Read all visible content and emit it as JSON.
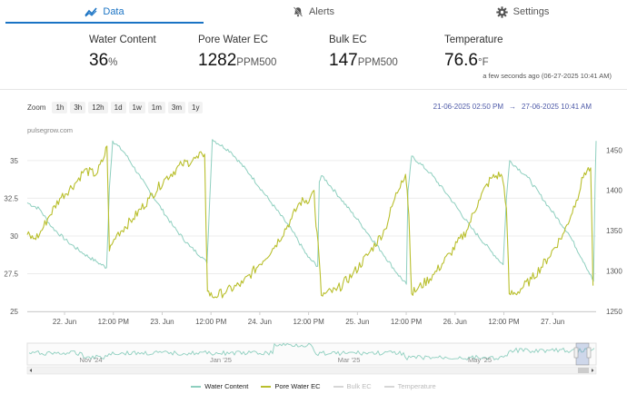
{
  "tabs": [
    {
      "label": "Data",
      "icon": "chart-line-icon",
      "active": true
    },
    {
      "label": "Alerts",
      "icon": "bell-off-icon",
      "active": false
    },
    {
      "label": "Settings",
      "icon": "gear-icon",
      "active": false
    }
  ],
  "metrics": [
    {
      "label": "Water Content",
      "value": "36",
      "unit": "%"
    },
    {
      "label": "Pore Water EC",
      "value": "1282",
      "unit": "PPM500"
    },
    {
      "label": "Bulk EC",
      "value": "147",
      "unit": "PPM500"
    },
    {
      "label": "Temperature",
      "value": "76.6",
      "unit": "°F"
    }
  ],
  "updated": "a few seconds ago (06-27-2025 10:41 AM)",
  "zoom": {
    "label": "Zoom",
    "buttons": [
      "1h",
      "3h",
      "12h",
      "1d",
      "1w",
      "1m",
      "3m",
      "1y"
    ]
  },
  "range": {
    "from": "21-06-2025 02:50 PM",
    "separator": "→",
    "to": "27-06-2025 10:41 AM"
  },
  "credit": "pulsegrow.com",
  "colors": {
    "accent": "#1a73c4",
    "water_content": "#8ecfbf",
    "pore_water_ec": "#b9bf2d",
    "bulk_ec_off": "#d6d6d6",
    "temperature_off": "#d6d6d6",
    "range_text": "#4e5aa8"
  },
  "chart_data": {
    "type": "line",
    "x_tick_labels": [
      "22. Jun",
      "12:00 PM",
      "23. Jun",
      "12:00 PM",
      "24. Jun",
      "12:00 PM",
      "25. Jun",
      "12:00 PM",
      "26. Jun",
      "12:00 PM",
      "27. Jun"
    ],
    "x_ticks_hours": [
      9.17,
      21.17,
      33.17,
      45.17,
      57.17,
      69.17,
      81.17,
      93.17,
      105.17,
      117.17,
      129.17
    ],
    "x_range_hours": [
      0,
      139.85
    ],
    "y_left": {
      "ticks": [
        25,
        27.5,
        30,
        32.5,
        35
      ],
      "range": [
        25,
        36.5
      ]
    },
    "y_right": {
      "ticks": [
        1250,
        1300,
        1350,
        1400,
        1450
      ],
      "range": [
        1250,
        1465
      ]
    },
    "series": [
      {
        "name": "Water Content",
        "axis": "left",
        "points": [
          [
            0,
            32.2
          ],
          [
            3,
            31.8
          ],
          [
            6,
            30.6
          ],
          [
            10,
            29.6
          ],
          [
            14,
            28.8
          ],
          [
            17,
            28.3
          ],
          [
            19.5,
            27.9
          ],
          [
            20.2,
            33.2
          ],
          [
            21,
            36.3
          ],
          [
            24,
            35.5
          ],
          [
            28,
            33.8
          ],
          [
            32,
            32.2
          ],
          [
            36,
            30.6
          ],
          [
            40,
            29.3
          ],
          [
            43,
            28.6
          ],
          [
            44.2,
            28.2
          ],
          [
            44.8,
            32.0
          ],
          [
            45.5,
            36.4
          ],
          [
            50,
            35.6
          ],
          [
            55,
            34.0
          ],
          [
            60,
            32.2
          ],
          [
            65,
            30.4
          ],
          [
            69,
            28.6
          ],
          [
            71.4,
            28.0
          ],
          [
            71.8,
            33.6
          ],
          [
            72.5,
            34.0
          ],
          [
            77,
            32.5
          ],
          [
            82,
            30.8
          ],
          [
            87,
            29.0
          ],
          [
            91,
            27.5
          ],
          [
            93.2,
            26.8
          ],
          [
            93.6,
            33.0
          ],
          [
            94.5,
            35.3
          ],
          [
            99,
            34.2
          ],
          [
            104,
            32.5
          ],
          [
            109,
            30.6
          ],
          [
            114,
            29.0
          ],
          [
            117,
            28.1
          ],
          [
            117.8,
            32.5
          ],
          [
            118.6,
            35.0
          ],
          [
            123,
            33.9
          ],
          [
            128,
            32.0
          ],
          [
            133,
            30.2
          ],
          [
            137,
            28.2
          ],
          [
            139.2,
            27.0
          ],
          [
            139.6,
            33.5
          ],
          [
            139.85,
            36.3
          ]
        ]
      },
      {
        "name": "Pore Water EC",
        "axis": "right",
        "points": [
          [
            0,
            1345
          ],
          [
            1.5,
            1340
          ],
          [
            3,
            1345
          ],
          [
            5,
            1365
          ],
          [
            8,
            1390
          ],
          [
            12,
            1410
          ],
          [
            14,
            1425
          ],
          [
            17,
            1420
          ],
          [
            18.8,
            1440
          ],
          [
            19.6,
            1455
          ],
          [
            20.2,
            1325
          ],
          [
            21,
            1335
          ],
          [
            22,
            1345
          ],
          [
            26,
            1365
          ],
          [
            30,
            1390
          ],
          [
            34,
            1415
          ],
          [
            38,
            1432
          ],
          [
            42,
            1440
          ],
          [
            43,
            1445
          ],
          [
            43.6,
            1445
          ],
          [
            44.3,
            1275
          ],
          [
            45.5,
            1268
          ],
          [
            49,
            1275
          ],
          [
            53,
            1285
          ],
          [
            57,
            1308
          ],
          [
            61,
            1332
          ],
          [
            65,
            1365
          ],
          [
            67,
            1385
          ],
          [
            69.5,
            1390
          ],
          [
            70.5,
            1400
          ],
          [
            71,
            1355
          ],
          [
            71.5,
            1335
          ],
          [
            72.3,
            1270
          ],
          [
            73.2,
            1272
          ],
          [
            76,
            1276
          ],
          [
            80,
            1296
          ],
          [
            84,
            1322
          ],
          [
            88,
            1352
          ],
          [
            90,
            1385
          ],
          [
            92,
            1412
          ],
          [
            93,
            1420
          ],
          [
            93.4,
            1400
          ],
          [
            93.8,
            1370
          ],
          [
            94.5,
            1272
          ],
          [
            96,
            1278
          ],
          [
            100,
            1296
          ],
          [
            104,
            1322
          ],
          [
            108,
            1350
          ],
          [
            111,
            1388
          ],
          [
            114,
            1415
          ],
          [
            116.5,
            1420
          ],
          [
            117.2,
            1405
          ],
          [
            117.8,
            1378
          ],
          [
            118.5,
            1272
          ],
          [
            120,
            1272
          ],
          [
            124,
            1290
          ],
          [
            128,
            1316
          ],
          [
            132,
            1348
          ],
          [
            135,
            1388
          ],
          [
            137,
            1422
          ],
          [
            138.5,
            1428
          ],
          [
            139.1,
            1282
          ]
        ]
      }
    ]
  },
  "navigator": {
    "labels": [
      "Nov '24",
      "Jan '25",
      "Mar '25",
      "May '25"
    ]
  },
  "legend": [
    {
      "name": "Water Content",
      "color": "#8ecfbf",
      "visible": true
    },
    {
      "name": "Pore Water EC",
      "color": "#b9bf2d",
      "visible": true
    },
    {
      "name": "Bulk EC",
      "color": "#d6d6d6",
      "visible": false
    },
    {
      "name": "Temperature",
      "color": "#d6d6d6",
      "visible": false
    }
  ]
}
